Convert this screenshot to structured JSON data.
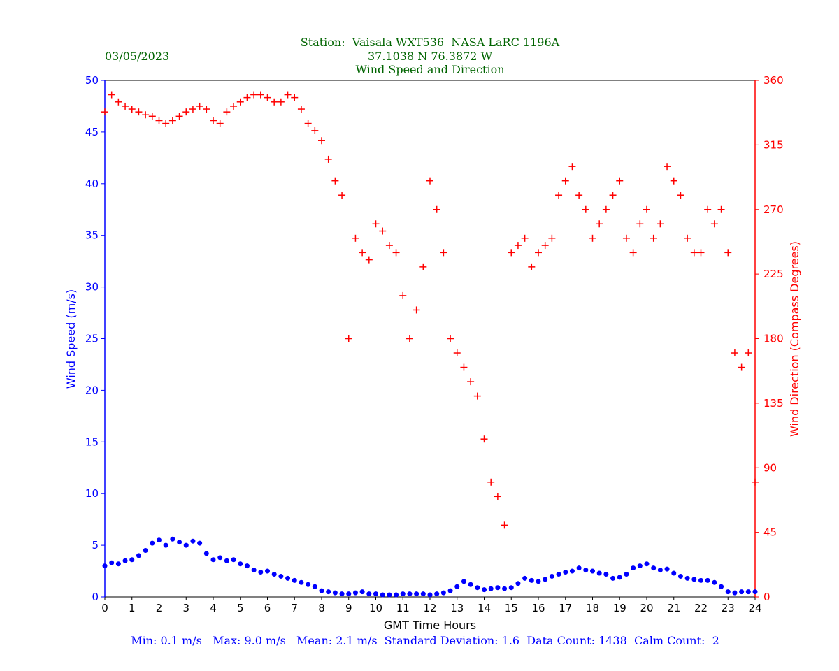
{
  "header": {
    "date": "03/05/2023",
    "title_line1": "Station:  Vaisala WXT536  NASA LaRC 1196A",
    "title_line2": "37.1038 N 76.3872 W",
    "title_line3": "Wind Speed and Direction"
  },
  "footer": {
    "stats": "Min: 0.1 m/s   Max: 9.0 m/s   Mean: 2.1 m/s  Standard Deviation: 1.6  Data Count: 1438  Calm Count:  2"
  },
  "colors": {
    "title": "#006400",
    "speed": "#0000ff",
    "direction": "#ff0000",
    "stats": "#0000ff",
    "axis": "#000000"
  },
  "chart_data": {
    "type": "scatter",
    "xlabel": "GMT Time Hours",
    "ylabel_left": "Wind Speed (m/s)",
    "ylabel_right": "Wind Direction (Compass Degrees)",
    "xlim": [
      0,
      24
    ],
    "ylim_left": [
      0,
      50
    ],
    "ylim_right": [
      0,
      360
    ],
    "x_ticks": [
      "0",
      "1",
      "2",
      "3",
      "4",
      "5",
      "6",
      "7",
      "8",
      "9",
      "10",
      "11",
      "12",
      "13",
      "14",
      "15",
      "16",
      "17",
      "18",
      "19",
      "20",
      "21",
      "22",
      "23",
      "24"
    ],
    "y_ticks_left": [
      "0",
      "5",
      "10",
      "15",
      "20",
      "25",
      "30",
      "35",
      "40",
      "45",
      "50"
    ],
    "y_ticks_right": [
      "0",
      "45",
      "90",
      "135",
      "180",
      "225",
      "270",
      "315",
      "360"
    ],
    "series": [
      {
        "name": "Wind Speed",
        "marker": "circle",
        "axis": "left",
        "x": [
          0.0,
          0.25,
          0.5,
          0.75,
          1.0,
          1.25,
          1.5,
          1.75,
          2.0,
          2.25,
          2.5,
          2.75,
          3.0,
          3.25,
          3.5,
          3.75,
          4.0,
          4.25,
          4.5,
          4.75,
          5.0,
          5.25,
          5.5,
          5.75,
          6.0,
          6.25,
          6.5,
          6.75,
          7.0,
          7.25,
          7.5,
          7.75,
          8.0,
          8.25,
          8.5,
          8.75,
          9.0,
          9.25,
          9.5,
          9.75,
          10.0,
          10.25,
          10.5,
          10.75,
          11.0,
          11.25,
          11.5,
          11.75,
          12.0,
          12.25,
          12.5,
          12.75,
          13.0,
          13.25,
          13.5,
          13.75,
          14.0,
          14.25,
          14.5,
          14.75,
          15.0,
          15.25,
          15.5,
          15.75,
          16.0,
          16.25,
          16.5,
          16.75,
          17.0,
          17.25,
          17.5,
          17.75,
          18.0,
          18.25,
          18.5,
          18.75,
          19.0,
          19.25,
          19.5,
          19.75,
          20.0,
          20.25,
          20.5,
          20.75,
          21.0,
          21.25,
          21.5,
          21.75,
          22.0,
          22.25,
          22.5,
          22.75,
          23.0,
          23.25,
          23.5,
          23.75,
          24.0
        ],
        "values": [
          3.0,
          3.3,
          3.2,
          3.5,
          3.6,
          4.0,
          4.5,
          5.2,
          5.5,
          5.0,
          5.6,
          5.3,
          5.0,
          5.4,
          5.2,
          4.2,
          3.6,
          3.8,
          3.5,
          3.6,
          3.2,
          3.0,
          2.6,
          2.4,
          2.5,
          2.2,
          2.0,
          1.8,
          1.6,
          1.4,
          1.2,
          1.0,
          0.6,
          0.5,
          0.4,
          0.3,
          0.3,
          0.4,
          0.5,
          0.3,
          0.3,
          0.2,
          0.2,
          0.2,
          0.3,
          0.3,
          0.3,
          0.3,
          0.2,
          0.3,
          0.4,
          0.6,
          1.0,
          1.5,
          1.2,
          0.9,
          0.7,
          0.8,
          0.9,
          0.8,
          0.9,
          1.3,
          1.8,
          1.6,
          1.5,
          1.7,
          2.0,
          2.2,
          2.4,
          2.5,
          2.8,
          2.6,
          2.5,
          2.3,
          2.2,
          1.8,
          1.9,
          2.2,
          2.8,
          3.0,
          3.2,
          2.8,
          2.6,
          2.7,
          2.3,
          2.0,
          1.8,
          1.7,
          1.6,
          1.6,
          1.4,
          1.0,
          0.5,
          0.4,
          0.5,
          0.5,
          0.5
        ]
      },
      {
        "name": "Wind Direction",
        "marker": "plus",
        "axis": "right",
        "x": [
          0.0,
          0.25,
          0.5,
          0.75,
          1.0,
          1.25,
          1.5,
          1.75,
          2.0,
          2.25,
          2.5,
          2.75,
          3.0,
          3.25,
          3.5,
          3.75,
          4.0,
          4.25,
          4.5,
          4.75,
          5.0,
          5.25,
          5.5,
          5.75,
          6.0,
          6.25,
          6.5,
          6.75,
          7.0,
          7.25,
          7.5,
          7.75,
          8.0,
          8.25,
          8.5,
          8.75,
          9.0,
          9.25,
          9.5,
          9.75,
          10.0,
          10.25,
          10.5,
          10.75,
          11.0,
          11.25,
          11.5,
          11.75,
          12.0,
          12.25,
          12.5,
          12.75,
          13.0,
          13.25,
          13.5,
          13.75,
          14.0,
          14.25,
          14.5,
          14.75,
          15.0,
          15.25,
          15.5,
          15.75,
          16.0,
          16.25,
          16.5,
          16.75,
          17.0,
          17.25,
          17.5,
          17.75,
          18.0,
          18.25,
          18.5,
          18.75,
          19.0,
          19.25,
          19.5,
          19.75,
          20.0,
          20.25,
          20.5,
          20.75,
          21.0,
          21.25,
          21.5,
          21.75,
          22.0,
          22.25,
          22.5,
          22.75,
          23.0,
          23.25,
          23.5,
          23.75,
          24.0
        ],
        "values": [
          338,
          350,
          345,
          342,
          340,
          338,
          336,
          335,
          332,
          330,
          332,
          335,
          338,
          340,
          342,
          340,
          332,
          330,
          338,
          342,
          345,
          348,
          350,
          350,
          348,
          345,
          345,
          350,
          348,
          340,
          330,
          325,
          318,
          305,
          290,
          280,
          180,
          250,
          240,
          235,
          260,
          255,
          245,
          240,
          210,
          180,
          200,
          230,
          290,
          270,
          240,
          180,
          170,
          160,
          150,
          140,
          110,
          80,
          70,
          50,
          240,
          245,
          250,
          230,
          240,
          245,
          250,
          280,
          290,
          300,
          280,
          270,
          250,
          260,
          270,
          280,
          290,
          250,
          240,
          260,
          270,
          250,
          260,
          300,
          290,
          280,
          250,
          240,
          240,
          270,
          260,
          270,
          240,
          170,
          160,
          170,
          80
        ]
      }
    ]
  }
}
